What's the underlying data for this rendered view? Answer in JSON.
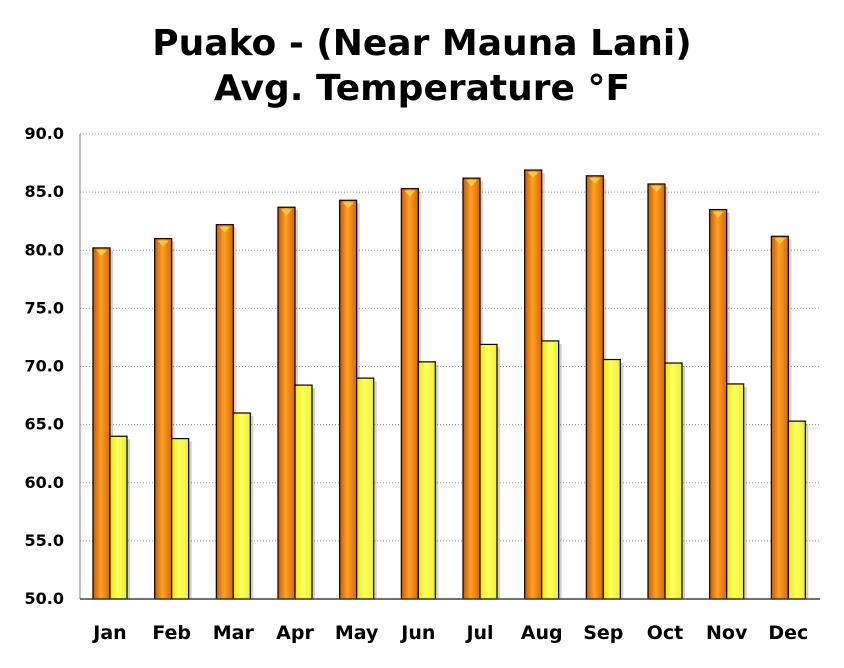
{
  "chart_data": {
    "type": "bar",
    "title_lines": [
      "Puako - (Near Mauna Lani)",
      "Avg. Temperature  °F"
    ],
    "xlabel": "",
    "ylabel": "",
    "categories": [
      "Jan",
      "Feb",
      "Mar",
      "Apr",
      "May",
      "Jun",
      "Jul",
      "Aug",
      "Sep",
      "Oct",
      "Nov",
      "Dec"
    ],
    "series": [
      {
        "color": "#f08000",
        "values": [
          80.2,
          81.0,
          82.2,
          83.7,
          84.3,
          85.3,
          86.2,
          86.9,
          86.4,
          85.7,
          83.5,
          81.2
        ]
      },
      {
        "color": "#ffff33",
        "values": [
          64.0,
          63.8,
          66.0,
          68.4,
          69.0,
          70.4,
          71.9,
          72.2,
          70.6,
          70.3,
          68.5,
          65.3
        ]
      }
    ],
    "yticks": [
      "50.0",
      "55.0",
      "60.0",
      "65.0",
      "70.0",
      "75.0",
      "80.0",
      "85.0",
      "90.0"
    ],
    "ylim": [
      50,
      90
    ],
    "grid": true,
    "legend": "none"
  }
}
